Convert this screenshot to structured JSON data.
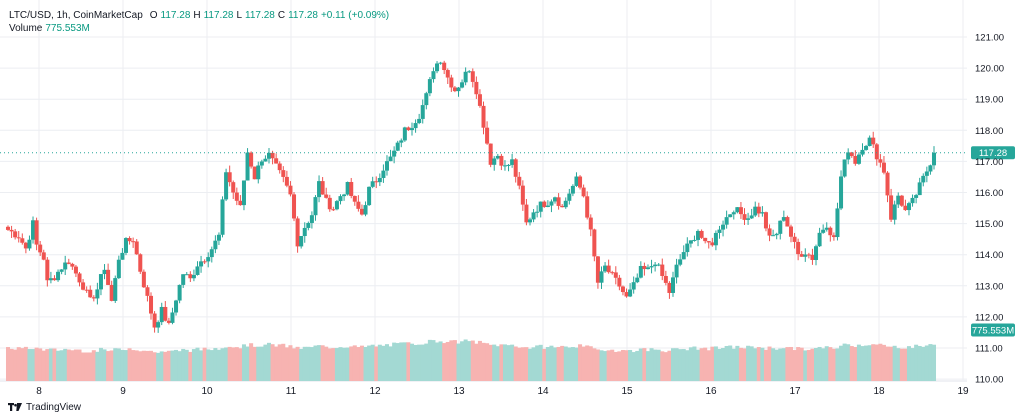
{
  "header": {
    "symbol_line": "LTC/USD, 1h, CoinMarketCap",
    "o_label": "O",
    "o_value": "117.28",
    "h_label": "H",
    "h_value": "117.28",
    "l_label": "L",
    "l_value": "117.28",
    "c_label": "C",
    "c_value": "117.28",
    "change": "+0.11 (+0.09%)",
    "volume_label": "Volume",
    "volume_value": "775.553M"
  },
  "footer": {
    "brand": "TradingView",
    "logo_icon": "tradingview-logo-icon"
  },
  "colors": {
    "up": "#26a69a",
    "down": "#ef5350",
    "up_vol": "#a3d9d3",
    "down_vol": "#f7b3b1",
    "grid": "#eceef2",
    "axis_text": "#131722",
    "badge": "#26a69a"
  },
  "chart_data": {
    "type": "candlestick",
    "title": "LTC/USD, 1h, CoinMarketCap",
    "x_ticks": [
      "8",
      "9",
      "10",
      "11",
      "12",
      "13",
      "14",
      "15",
      "16",
      "17",
      "18",
      "19"
    ],
    "y_ticks": [
      "121.00",
      "120.00",
      "119.00",
      "118.00",
      "117.00",
      "116.00",
      "115.00",
      "114.00",
      "113.00",
      "112.00",
      "111.00",
      "110.00"
    ],
    "ylim": [
      109.9,
      121.5
    ],
    "last_price": 117.28,
    "last_price_label": "117.28",
    "last_volume_label": "775.553M",
    "volume_axis_range": [
      110.0,
      112.0
    ],
    "close_path": [
      [
        0,
        114.8
      ],
      [
        3,
        114.6
      ],
      [
        5,
        114.2
      ],
      [
        7,
        115.0
      ],
      [
        8,
        114.3
      ],
      [
        10,
        113.9
      ],
      [
        11,
        113.1
      ],
      [
        13,
        113.3
      ],
      [
        15,
        113.6
      ],
      [
        17,
        113.8
      ],
      [
        19,
        113.4
      ],
      [
        21,
        113.0
      ],
      [
        23,
        112.5
      ],
      [
        25,
        112.9
      ],
      [
        27,
        113.6
      ],
      [
        29,
        112.5
      ],
      [
        31,
        113.9
      ],
      [
        33,
        114.4
      ],
      [
        35,
        114.5
      ],
      [
        37,
        113.5
      ],
      [
        39,
        112.6
      ],
      [
        41,
        111.7
      ],
      [
        43,
        112.2
      ],
      [
        45,
        111.7
      ],
      [
        47,
        112.6
      ],
      [
        49,
        113.4
      ],
      [
        51,
        113.2
      ],
      [
        53,
        113.7
      ],
      [
        55,
        113.9
      ],
      [
        57,
        114.2
      ],
      [
        59,
        114.6
      ],
      [
        61,
        116.7
      ],
      [
        63,
        116.0
      ],
      [
        65,
        115.5
      ],
      [
        67,
        117.3
      ],
      [
        69,
        116.5
      ],
      [
        71,
        117.1
      ],
      [
        73,
        117.2
      ],
      [
        75,
        116.8
      ],
      [
        77,
        116.4
      ],
      [
        79,
        115.9
      ],
      [
        81,
        114.4
      ],
      [
        83,
        114.9
      ],
      [
        85,
        115.3
      ],
      [
        87,
        116.3
      ],
      [
        89,
        115.7
      ],
      [
        91,
        115.5
      ],
      [
        93,
        115.9
      ],
      [
        95,
        116.2
      ],
      [
        97,
        115.6
      ],
      [
        99,
        115.3
      ],
      [
        101,
        116.1
      ],
      [
        103,
        116.4
      ],
      [
        105,
        116.8
      ],
      [
        107,
        117.1
      ],
      [
        109,
        117.5
      ],
      [
        111,
        118.0
      ],
      [
        113,
        118.2
      ],
      [
        115,
        118.5
      ],
      [
        117,
        119.1
      ],
      [
        119,
        120.0
      ],
      [
        121,
        120.3
      ],
      [
        123,
        119.7
      ],
      [
        125,
        119.3
      ],
      [
        127,
        119.6
      ],
      [
        129,
        120.0
      ],
      [
        131,
        119.3
      ],
      [
        133,
        118.2
      ],
      [
        135,
        117.0
      ],
      [
        137,
        117.2
      ],
      [
        139,
        116.8
      ],
      [
        141,
        117.0
      ],
      [
        143,
        116.1
      ],
      [
        145,
        115.0
      ],
      [
        147,
        115.4
      ],
      [
        149,
        115.6
      ],
      [
        151,
        115.7
      ],
      [
        153,
        115.9
      ],
      [
        155,
        115.5
      ],
      [
        157,
        116.0
      ],
      [
        159,
        116.4
      ],
      [
        161,
        115.9
      ],
      [
        163,
        114.7
      ],
      [
        165,
        113.1
      ],
      [
        167,
        113.6
      ],
      [
        169,
        113.3
      ],
      [
        171,
        113.0
      ],
      [
        173,
        112.6
      ],
      [
        175,
        113.0
      ],
      [
        177,
        113.5
      ],
      [
        179,
        113.5
      ],
      [
        181,
        113.8
      ],
      [
        183,
        113.3
      ],
      [
        185,
        112.8
      ],
      [
        187,
        113.6
      ],
      [
        189,
        114.1
      ],
      [
        191,
        114.4
      ],
      [
        193,
        114.8
      ],
      [
        195,
        114.3
      ],
      [
        197,
        114.4
      ],
      [
        199,
        114.9
      ],
      [
        201,
        115.2
      ],
      [
        203,
        115.5
      ],
      [
        205,
        115.3
      ],
      [
        207,
        115.2
      ],
      [
        209,
        115.5
      ],
      [
        211,
        115.3
      ],
      [
        213,
        114.5
      ],
      [
        215,
        114.7
      ],
      [
        217,
        115.3
      ],
      [
        219,
        114.6
      ],
      [
        221,
        114.0
      ],
      [
        223,
        114.1
      ],
      [
        225,
        113.9
      ],
      [
        227,
        114.7
      ],
      [
        229,
        115.0
      ],
      [
        231,
        114.5
      ],
      [
        233,
        116.5
      ],
      [
        235,
        117.4
      ],
      [
        237,
        117.0
      ],
      [
        239,
        117.5
      ],
      [
        241,
        117.7
      ],
      [
        243,
        117.2
      ],
      [
        245,
        116.7
      ],
      [
        247,
        115.2
      ],
      [
        249,
        115.9
      ],
      [
        251,
        115.4
      ],
      [
        253,
        115.7
      ],
      [
        255,
        116.2
      ],
      [
        257,
        116.7
      ],
      [
        259,
        117.28
      ]
    ]
  }
}
